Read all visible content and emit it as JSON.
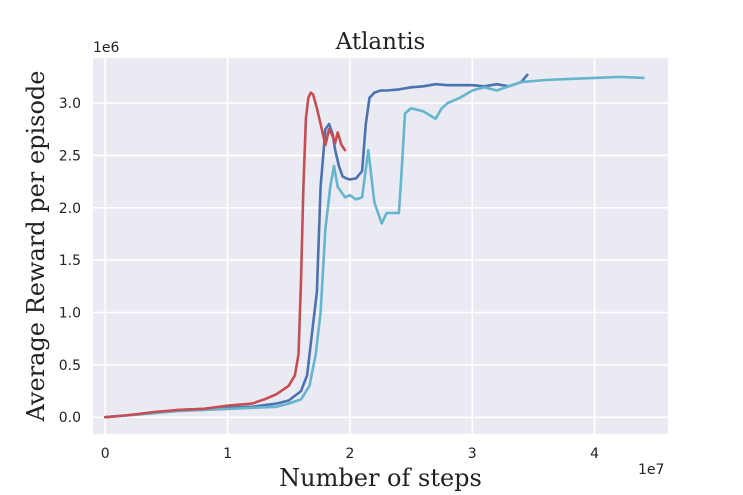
{
  "chart_data": {
    "type": "line",
    "title": "Atlantis",
    "xlabel": "Number of steps",
    "ylabel": "Average Reward per episode",
    "x_scale_label": "1e7",
    "y_scale_label": "1e6",
    "xlim": [
      -0.1,
      4.6
    ],
    "ylim": [
      -0.16,
      3.43
    ],
    "xticks": [
      0,
      1,
      2,
      3,
      4
    ],
    "xtick_labels": [
      "0",
      "1",
      "2",
      "3",
      "4"
    ],
    "yticks": [
      0.0,
      0.5,
      1.0,
      1.5,
      2.0,
      2.5,
      3.0
    ],
    "ytick_labels": [
      "0.0",
      "0.5",
      "1.0",
      "1.5",
      "2.0",
      "2.5",
      "3.0"
    ],
    "grid": true,
    "background": "#eaeaf2",
    "series": [
      {
        "color": "#c44e52",
        "x": [
          0,
          0.2,
          0.4,
          0.6,
          0.8,
          1.0,
          1.2,
          1.3,
          1.4,
          1.5,
          1.55,
          1.58,
          1.6,
          1.62,
          1.64,
          1.66,
          1.68,
          1.7,
          1.73,
          1.76,
          1.8,
          1.83,
          1.86,
          1.88,
          1.9,
          1.93,
          1.96
        ],
        "y": [
          0.0,
          0.02,
          0.05,
          0.07,
          0.08,
          0.11,
          0.13,
          0.17,
          0.22,
          0.3,
          0.4,
          0.6,
          1.3,
          2.2,
          2.85,
          3.05,
          3.1,
          3.08,
          2.95,
          2.8,
          2.6,
          2.75,
          2.68,
          2.62,
          2.72,
          2.6,
          2.55
        ]
      },
      {
        "color": "#4c72b0",
        "x": [
          0,
          0.2,
          0.4,
          0.6,
          0.8,
          1.0,
          1.2,
          1.4,
          1.5,
          1.6,
          1.65,
          1.7,
          1.73,
          1.76,
          1.8,
          1.83,
          1.86,
          1.88,
          1.91,
          1.94,
          1.97,
          2.0,
          2.05,
          2.1,
          2.13,
          2.16,
          2.2,
          2.25,
          2.3,
          2.4,
          2.5,
          2.6,
          2.7,
          2.8,
          3.0,
          3.1,
          3.2,
          3.3,
          3.4,
          3.45
        ],
        "y": [
          0.0,
          0.02,
          0.04,
          0.07,
          0.08,
          0.09,
          0.1,
          0.13,
          0.16,
          0.25,
          0.4,
          0.9,
          1.2,
          2.2,
          2.75,
          2.8,
          2.7,
          2.55,
          2.4,
          2.3,
          2.28,
          2.27,
          2.28,
          2.35,
          2.8,
          3.05,
          3.1,
          3.12,
          3.12,
          3.13,
          3.15,
          3.16,
          3.18,
          3.17,
          3.17,
          3.16,
          3.18,
          3.16,
          3.2,
          3.27
        ]
      },
      {
        "color": "#64b5cd",
        "x": [
          0,
          0.2,
          0.4,
          0.6,
          0.8,
          1.0,
          1.2,
          1.4,
          1.5,
          1.6,
          1.67,
          1.72,
          1.76,
          1.8,
          1.84,
          1.87,
          1.9,
          1.93,
          1.96,
          2.0,
          2.05,
          2.1,
          2.15,
          2.2,
          2.26,
          2.3,
          2.4,
          2.42,
          2.45,
          2.5,
          2.6,
          2.7,
          2.75,
          2.8,
          2.9,
          3.0,
          3.1,
          3.2,
          3.4,
          3.6,
          3.8,
          4.0,
          4.2,
          4.4
        ],
        "y": [
          0.0,
          0.02,
          0.04,
          0.06,
          0.07,
          0.08,
          0.09,
          0.1,
          0.13,
          0.17,
          0.3,
          0.6,
          1.0,
          1.8,
          2.2,
          2.4,
          2.2,
          2.15,
          2.1,
          2.12,
          2.08,
          2.1,
          2.55,
          2.05,
          1.85,
          1.95,
          1.95,
          2.3,
          2.9,
          2.95,
          2.92,
          2.85,
          2.95,
          3.0,
          3.05,
          3.12,
          3.15,
          3.12,
          3.2,
          3.22,
          3.23,
          3.24,
          3.25,
          3.24
        ]
      }
    ]
  }
}
